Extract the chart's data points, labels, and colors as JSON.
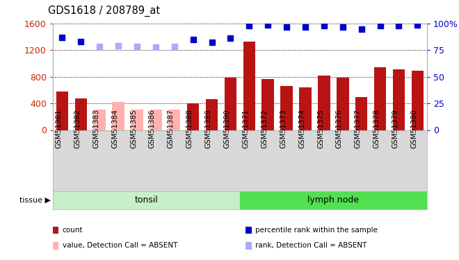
{
  "title": "GDS1618 / 208789_at",
  "samples": [
    "GSM51381",
    "GSM51382",
    "GSM51383",
    "GSM51384",
    "GSM51385",
    "GSM51386",
    "GSM51387",
    "GSM51388",
    "GSM51389",
    "GSM51390",
    "GSM51371",
    "GSM51372",
    "GSM51373",
    "GSM51374",
    "GSM51375",
    "GSM51376",
    "GSM51377",
    "GSM51378",
    "GSM51379",
    "GSM51380"
  ],
  "bar_values": [
    580,
    470,
    310,
    420,
    310,
    305,
    305,
    400,
    460,
    790,
    1330,
    760,
    660,
    640,
    820,
    790,
    490,
    940,
    910,
    890
  ],
  "bar_absent": [
    false,
    false,
    true,
    true,
    true,
    true,
    true,
    false,
    false,
    false,
    false,
    false,
    false,
    false,
    false,
    false,
    false,
    false,
    false,
    false
  ],
  "rank_values": [
    1390,
    1330,
    1255,
    1260,
    1250,
    1240,
    1250,
    1360,
    1320,
    1380,
    1565,
    1580,
    1545,
    1545,
    1565,
    1545,
    1510,
    1565,
    1565,
    1580
  ],
  "rank_absent": [
    false,
    false,
    true,
    true,
    true,
    true,
    true,
    false,
    false,
    false,
    false,
    false,
    false,
    false,
    false,
    false,
    false,
    false,
    false,
    false
  ],
  "tonsil_count": 10,
  "lymph_count": 10,
  "tonsil_label": "tonsil",
  "lymph_label": "lymph node",
  "ylim_left": [
    0,
    1600
  ],
  "ylim_right": [
    0,
    100
  ],
  "yticks_left": [
    0,
    400,
    800,
    1200,
    1600
  ],
  "yticks_right": [
    0,
    25,
    50,
    75,
    100
  ],
  "bar_color_present": "#b81414",
  "bar_color_absent": "#ffb0b0",
  "rank_color_present": "#0000cc",
  "rank_color_absent": "#aaaaff",
  "tonsil_color": "#c8f0c8",
  "lymph_color": "#50e050",
  "bg_color": "#ffffff",
  "axis_color_left": "#cc2200",
  "axis_color_right": "#0000cc",
  "xtick_bg": "#d8d8d8",
  "legend_items": [
    {
      "label": "count",
      "color": "#b81414"
    },
    {
      "label": "percentile rank within the sample",
      "color": "#0000cc"
    },
    {
      "label": "value, Detection Call = ABSENT",
      "color": "#ffb0b0"
    },
    {
      "label": "rank, Detection Call = ABSENT",
      "color": "#aaaaff"
    }
  ]
}
